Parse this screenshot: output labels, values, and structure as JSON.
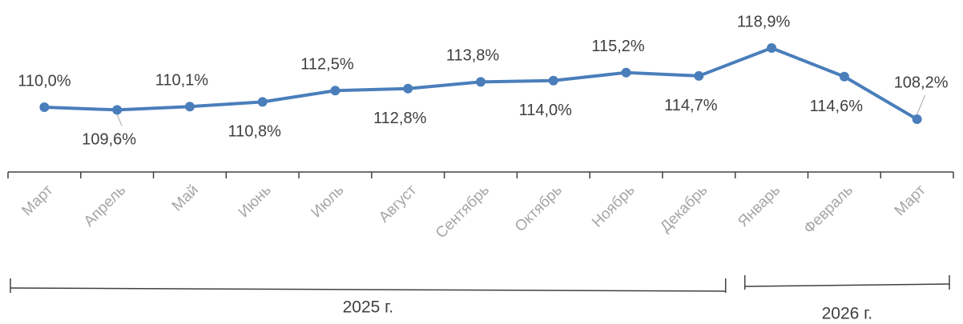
{
  "chart_data": {
    "type": "line",
    "categories": [
      "Март",
      "Апрель",
      "Май",
      "Июнь",
      "Июль",
      "Август",
      "Сентябрь",
      "Октябрь",
      "Ноябрь",
      "Декабрь",
      "Январь",
      "Февраль",
      "Март"
    ],
    "series": [
      {
        "color": "#4a7ebb",
        "values": [
          110.0,
          109.6,
          110.1,
          110.8,
          112.5,
          112.8,
          113.8,
          114.0,
          115.2,
          114.7,
          118.9,
          114.6,
          108.2
        ],
        "value_labels": [
          "110,0%",
          "109,6%",
          "110,1%",
          "110,8%",
          "112,5%",
          "112,8%",
          "113,8%",
          "114,0%",
          "115,2%",
          "114,7%",
          "118,9%",
          "114,6%",
          "108,2%"
        ]
      }
    ],
    "groups": [
      {
        "label": "2025 г.",
        "span": 10
      },
      {
        "label": "2026 г.",
        "span": 3
      }
    ]
  }
}
